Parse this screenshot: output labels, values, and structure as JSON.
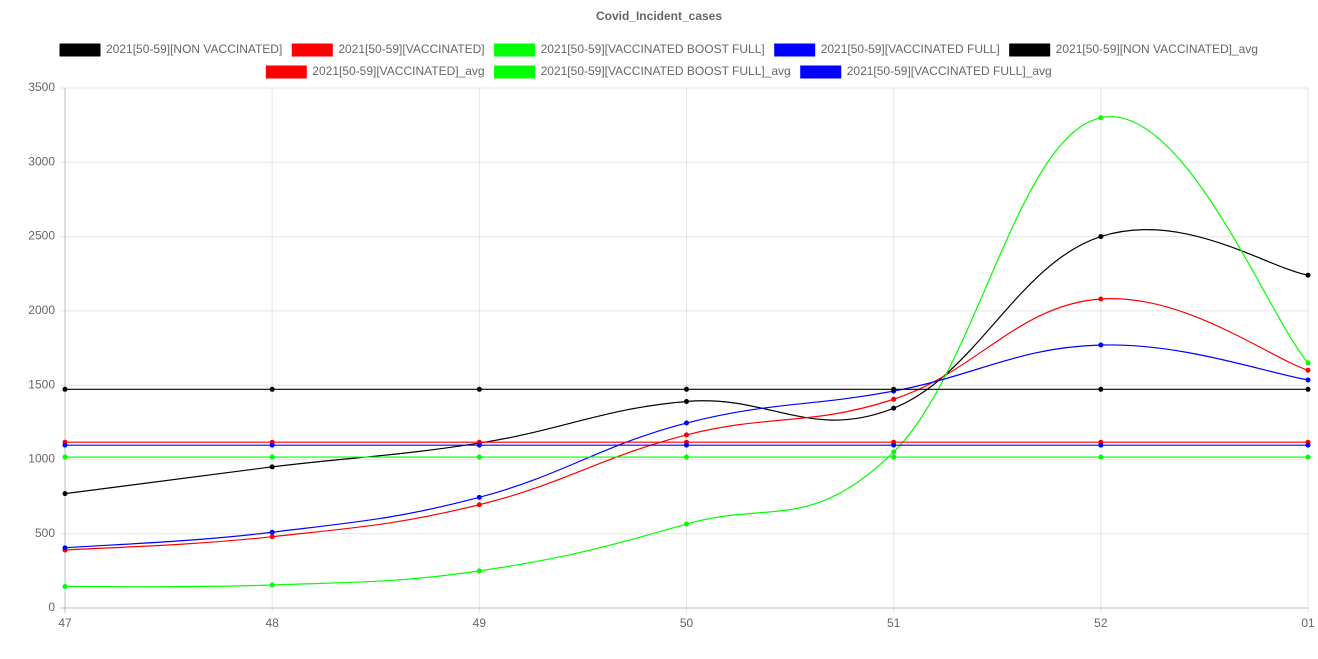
{
  "chart_data": {
    "type": "line",
    "title": "Covid_Incident_cases",
    "categories": [
      "47",
      "48",
      "49",
      "50",
      "51",
      "52",
      "01"
    ],
    "series": [
      {
        "name": "2021[50-59][NON VACCINATED]",
        "color": "#000000",
        "values": [
          770,
          950,
          1110,
          1390,
          1345,
          2500,
          2240
        ]
      },
      {
        "name": "2021[50-59][VACCINATED]",
        "color": "#ff0000",
        "values": [
          390,
          480,
          695,
          1165,
          1405,
          2080,
          1600
        ]
      },
      {
        "name": "2021[50-59][VACCINATED BOOST FULL]",
        "color": "#00ff00",
        "values": [
          145,
          155,
          250,
          565,
          1050,
          3300,
          1650
        ]
      },
      {
        "name": "2021[50-59][VACCINATED FULL]",
        "color": "#0000ff",
        "values": [
          405,
          510,
          745,
          1245,
          1460,
          1770,
          1535
        ]
      },
      {
        "name": "2021[50-59][NON VACCINATED]_avg",
        "color": "#000000",
        "values": [
          1472,
          1472,
          1472,
          1472,
          1472,
          1472,
          1472
        ]
      },
      {
        "name": "2021[50-59][VACCINATED]_avg",
        "color": "#ff0000",
        "values": [
          1116,
          1116,
          1116,
          1116,
          1116,
          1116,
          1116
        ]
      },
      {
        "name": "2021[50-59][VACCINATED BOOST FULL]_avg",
        "color": "#00ff00",
        "values": [
          1016,
          1016,
          1016,
          1016,
          1016,
          1016,
          1016
        ]
      },
      {
        "name": "2021[50-59][VACCINATED FULL]_avg",
        "color": "#0000ff",
        "values": [
          1096,
          1096,
          1096,
          1096,
          1096,
          1096,
          1096
        ]
      }
    ],
    "ylim": [
      0,
      3500
    ],
    "yticks": [
      0,
      500,
      1000,
      1500,
      2000,
      2500,
      3000,
      3500
    ],
    "grid": true,
    "legend": "top",
    "smooth": true
  }
}
